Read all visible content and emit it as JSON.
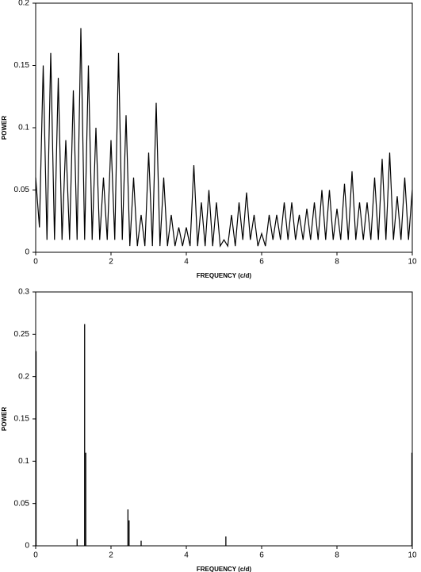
{
  "chart_data": [
    {
      "type": "line",
      "xlabel": "FREQUENCY (c/d)",
      "ylabel": "POWER",
      "xlim": [
        0,
        10
      ],
      "xticks": [
        0,
        2,
        4,
        6,
        8,
        10
      ],
      "ylim": [
        0,
        0.2
      ],
      "yticks": [
        0,
        0.05,
        0.1,
        0.15,
        0.2
      ],
      "color": "#000000",
      "x": [
        0,
        0.1,
        0.2,
        0.3,
        0.4,
        0.5,
        0.6,
        0.7,
        0.8,
        0.9,
        1,
        1.1,
        1.2,
        1.3,
        1.4,
        1.5,
        1.6,
        1.7,
        1.8,
        1.9,
        2,
        2.1,
        2.2,
        2.3,
        2.4,
        2.5,
        2.6,
        2.7,
        2.8,
        2.9,
        3,
        3.1,
        3.2,
        3.3,
        3.4,
        3.5,
        3.6,
        3.7,
        3.8,
        3.9,
        4,
        4.1,
        4.2,
        4.3,
        4.4,
        4.5,
        4.6,
        4.7,
        4.8,
        4.9,
        5,
        5.1,
        5.2,
        5.3,
        5.4,
        5.5,
        5.6,
        5.7,
        5.8,
        5.9,
        6,
        6.1,
        6.2,
        6.3,
        6.4,
        6.5,
        6.6,
        6.7,
        6.8,
        6.9,
        7,
        7.1,
        7.2,
        7.3,
        7.4,
        7.5,
        7.6,
        7.7,
        7.8,
        7.9,
        8,
        8.1,
        8.2,
        8.3,
        8.4,
        8.5,
        8.6,
        8.7,
        8.8,
        8.9,
        9,
        9.1,
        9.2,
        9.3,
        9.4,
        9.5,
        9.6,
        9.7,
        9.8,
        9.9,
        10
      ],
      "values": [
        0.06,
        0.02,
        0.15,
        0.01,
        0.16,
        0.01,
        0.14,
        0.01,
        0.09,
        0.01,
        0.13,
        0.01,
        0.18,
        0.01,
        0.15,
        0.01,
        0.1,
        0.01,
        0.06,
        0.01,
        0.09,
        0.01,
        0.16,
        0.01,
        0.11,
        0.005,
        0.06,
        0.005,
        0.03,
        0.005,
        0.08,
        0.005,
        0.12,
        0.005,
        0.06,
        0.005,
        0.03,
        0.005,
        0.02,
        0.005,
        0.02,
        0.005,
        0.07,
        0.005,
        0.04,
        0.005,
        0.05,
        0.005,
        0.04,
        0.005,
        0.01,
        0.005,
        0.03,
        0.005,
        0.04,
        0.01,
        0.048,
        0.01,
        0.03,
        0.005,
        0.015,
        0.005,
        0.03,
        0.01,
        0.03,
        0.01,
        0.04,
        0.01,
        0.04,
        0.01,
        0.03,
        0.01,
        0.035,
        0.01,
        0.04,
        0.01,
        0.05,
        0.01,
        0.05,
        0.01,
        0.035,
        0.01,
        0.055,
        0.01,
        0.065,
        0.01,
        0.04,
        0.01,
        0.04,
        0.01,
        0.06,
        0.01,
        0.075,
        0.01,
        0.08,
        0.01,
        0.045,
        0.01,
        0.06,
        0.01,
        0.05
      ]
    },
    {
      "type": "stem",
      "xlabel": "FREQUENCY (c/d)",
      "ylabel": "POWER",
      "xlim": [
        0,
        10
      ],
      "xticks": [
        0,
        2,
        4,
        6,
        8,
        10
      ],
      "ylim": [
        0,
        0.3
      ],
      "yticks": [
        0,
        0.05,
        0.1,
        0.15,
        0.2,
        0.25,
        0.3
      ],
      "color": "#000000",
      "x": [
        0.01,
        1.1,
        1.3,
        1.33,
        2.45,
        2.48,
        2.8,
        5.05,
        9.99
      ],
      "values": [
        0.23,
        0.008,
        0.262,
        0.11,
        0.043,
        0.03,
        0.006,
        0.011,
        0.11
      ]
    }
  ]
}
